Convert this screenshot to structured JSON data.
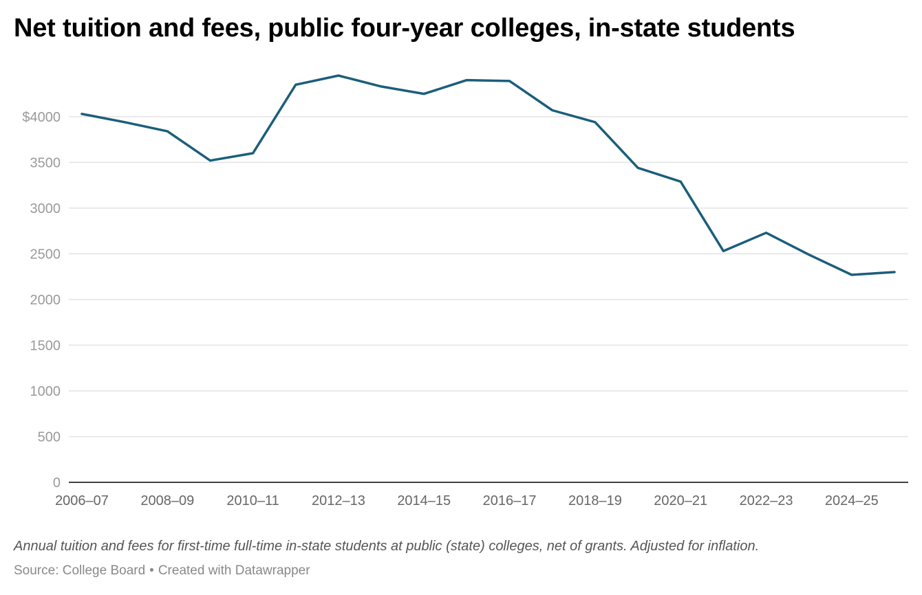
{
  "chart_data": {
    "type": "line",
    "title": "Net tuition and fees, public four-year colleges, in-state students",
    "notes": "Annual tuition and fees for first-time full-time in-state students at public (state) colleges, net of grants. Adjusted for inflation.",
    "source_label": "Source: College Board",
    "credit": "Created with Datawrapper",
    "separator": "•",
    "xlabel": "",
    "ylabel": "",
    "ylim": [
      0,
      4600
    ],
    "y_ticks": [
      0,
      500,
      1000,
      1500,
      2000,
      2500,
      3000,
      3500,
      4000
    ],
    "y_tick_labels": [
      "0",
      "500",
      "1000",
      "1500",
      "2000",
      "2500",
      "3000",
      "3500",
      "$4000"
    ],
    "x": [
      "2006–07",
      "2007–08",
      "2008–09",
      "2009–10",
      "2010–11",
      "2011–12",
      "2012–13",
      "2013–14",
      "2014–15",
      "2015–16",
      "2016–17",
      "2017–18",
      "2018–19",
      "2019–20",
      "2020–21",
      "2021–22",
      "2022–23",
      "2023–24",
      "2024–25",
      "2025–26"
    ],
    "x_tick_labels": [
      "2006–07",
      "2008–09",
      "2010–11",
      "2012–13",
      "2014–15",
      "2016–17",
      "2018–19",
      "2020–21",
      "2022–23",
      "2024–25"
    ],
    "series": [
      {
        "name": "Net tuition and fees",
        "color": "#1b5e7b",
        "values": [
          4030,
          3940,
          3840,
          3520,
          3600,
          4350,
          4450,
          4330,
          4250,
          4400,
          4390,
          4070,
          3940,
          3440,
          3290,
          2530,
          2730,
          2490,
          2270,
          2300
        ]
      }
    ],
    "grid": true,
    "grid_color": "#e3e3e3",
    "axis_color": "#000000"
  }
}
